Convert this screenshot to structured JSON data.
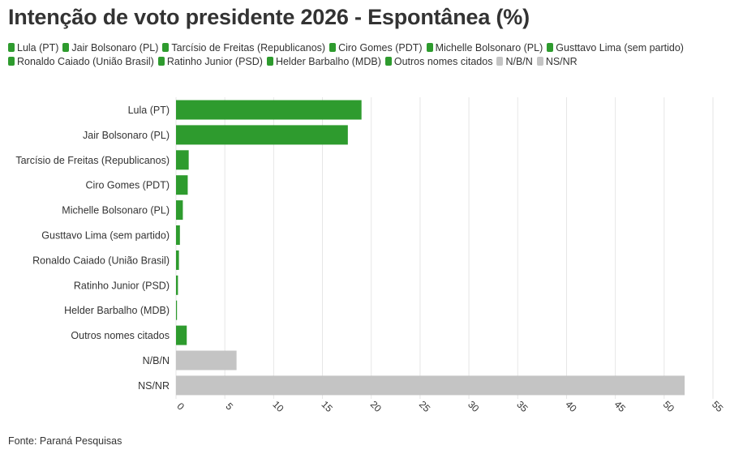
{
  "source": "Fonte: Paraná Pesquisas",
  "colors": {
    "candidate": "#2e9b2e",
    "undecided": "#c4c4c4",
    "grid": "#e6e6e6",
    "text": "#333333"
  },
  "chart_data": {
    "type": "bar",
    "orientation": "horizontal",
    "title": "Intenção de voto presidente 2026 - Espontânea (%)",
    "categories": [
      "Lula (PT)",
      "Jair Bolsonaro (PL)",
      "Tarcísio de Freitas (Republicanos)",
      "Ciro Gomes (PDT)",
      "Michelle Bolsonaro (PL)",
      "Gusttavo Lima (sem partido)",
      "Ronaldo Caiado (União Brasil)",
      "Ratinho Junior (PSD)",
      "Helder Barbalho (MDB)",
      "Outros nomes citados",
      "N/B/N",
      "NS/NR"
    ],
    "values": [
      19.0,
      17.6,
      1.3,
      1.2,
      0.7,
      0.4,
      0.3,
      0.2,
      0.1,
      1.1,
      6.2,
      52.1
    ],
    "bar_colors": [
      "#2e9b2e",
      "#2e9b2e",
      "#2e9b2e",
      "#2e9b2e",
      "#2e9b2e",
      "#2e9b2e",
      "#2e9b2e",
      "#2e9b2e",
      "#2e9b2e",
      "#2e9b2e",
      "#c4c4c4",
      "#c4c4c4"
    ],
    "legend": [
      {
        "label": "Lula (PT)",
        "color": "#2e9b2e"
      },
      {
        "label": "Jair Bolsonaro (PL)",
        "color": "#2e9b2e"
      },
      {
        "label": "Tarcísio de Freitas (Republicanos)",
        "color": "#2e9b2e"
      },
      {
        "label": "Ciro Gomes (PDT)",
        "color": "#2e9b2e"
      },
      {
        "label": "Michelle Bolsonaro (PL)",
        "color": "#2e9b2e"
      },
      {
        "label": "Gusttavo Lima (sem partido)",
        "color": "#2e9b2e"
      },
      {
        "label": "Ronaldo Caiado (União Brasil)",
        "color": "#2e9b2e"
      },
      {
        "label": "Ratinho Junior (PSD)",
        "color": "#2e9b2e"
      },
      {
        "label": "Helder Barbalho (MDB)",
        "color": "#2e9b2e"
      },
      {
        "label": "Outros nomes citados",
        "color": "#2e9b2e"
      },
      {
        "label": "N/B/N",
        "color": "#c4c4c4"
      },
      {
        "label": "NS/NR",
        "color": "#c4c4c4"
      }
    ],
    "legend_position": "top",
    "xlim": [
      0,
      55
    ],
    "xticks": [
      0,
      5,
      10,
      15,
      20,
      25,
      30,
      35,
      40,
      45,
      50,
      55
    ],
    "xticklabels": [
      "0",
      "5",
      "10",
      "15",
      "20",
      "25",
      "30",
      "35",
      "40",
      "45",
      "50",
      "55"
    ],
    "grid": "vertical"
  }
}
